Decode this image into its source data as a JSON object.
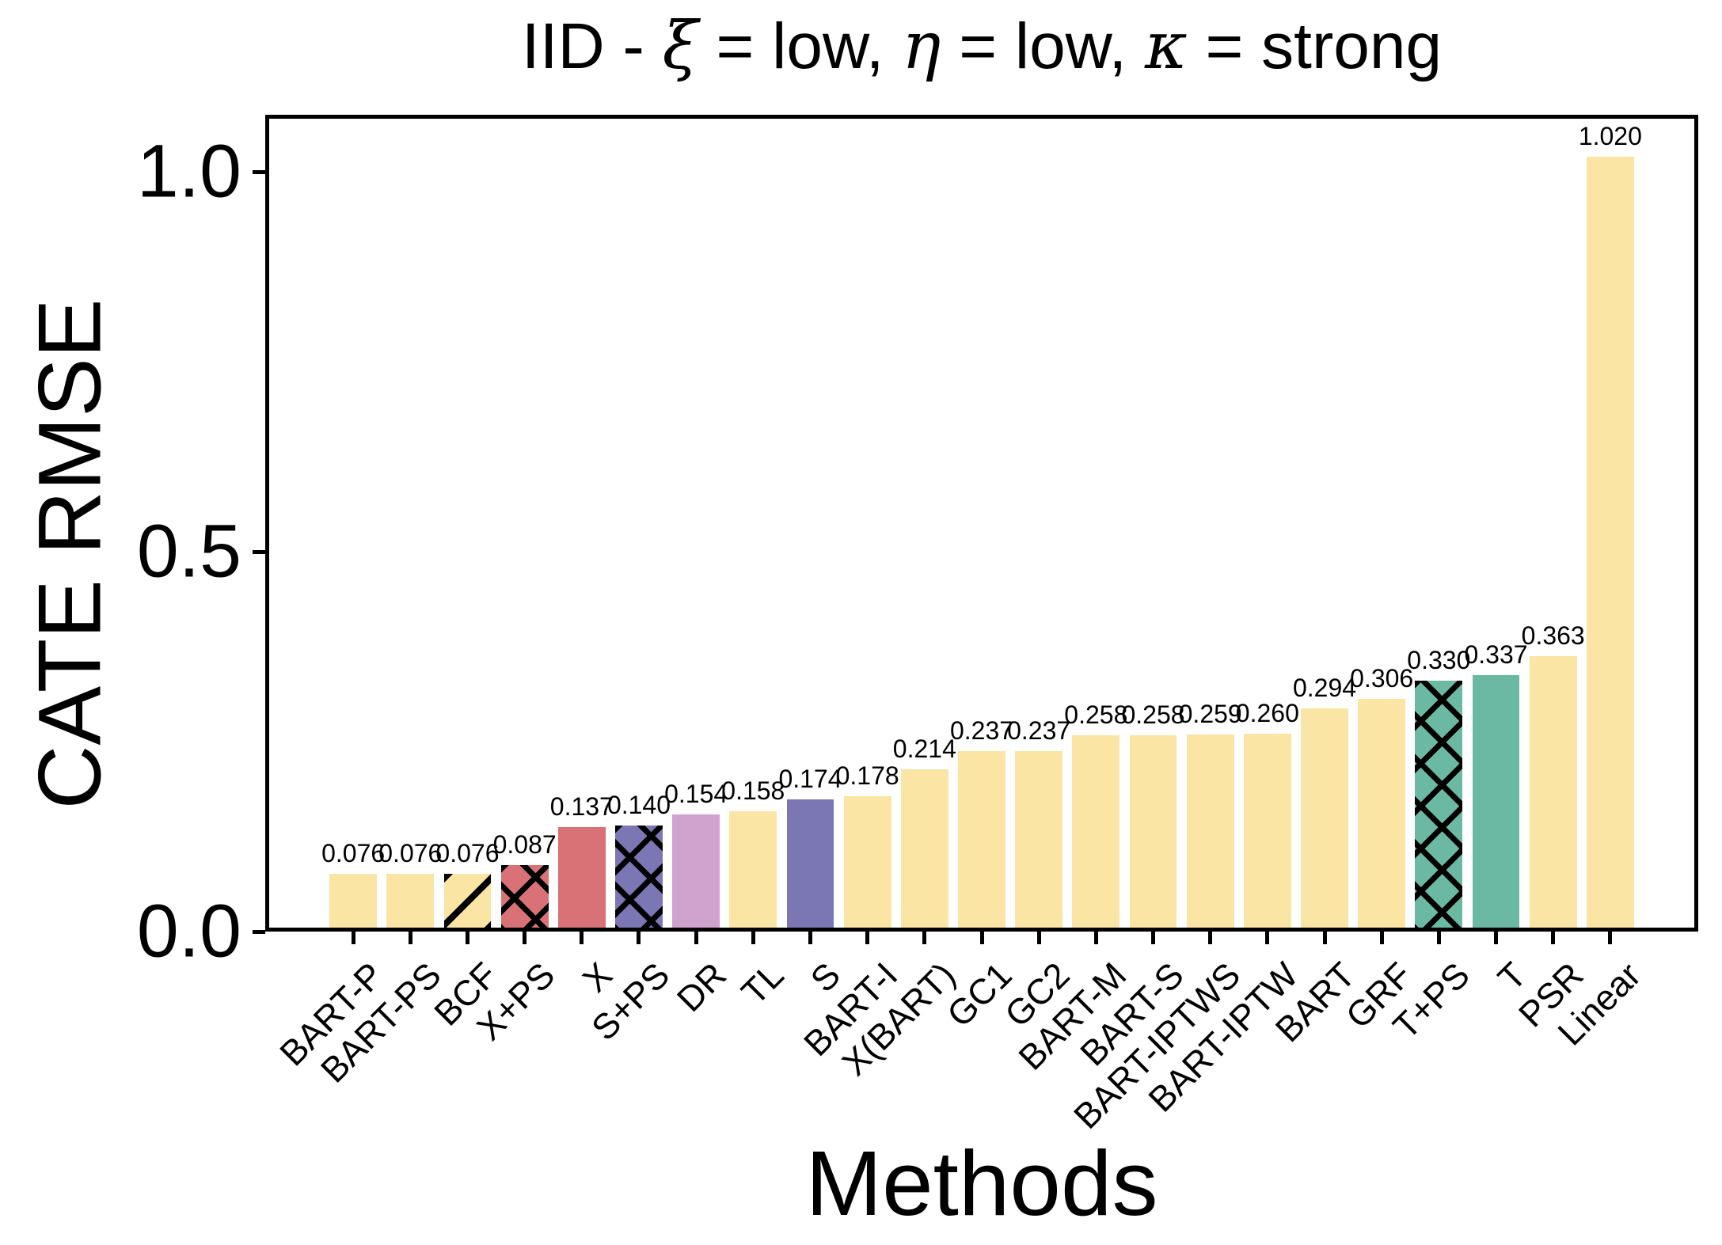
{
  "title": {
    "plain": "IID - ξ = low, η = low, κ = strong",
    "segments": [
      {
        "text": "IID - ",
        "italic": false
      },
      {
        "text": "ξ",
        "italic": true
      },
      {
        "text": " = low, ",
        "italic": false
      },
      {
        "text": "η",
        "italic": true
      },
      {
        "text": " = low, ",
        "italic": false
      },
      {
        "text": "κ",
        "italic": true
      },
      {
        "text": " = strong",
        "italic": false
      }
    ]
  },
  "chart_data": {
    "type": "bar",
    "title": "IID - ξ = low, η = low, κ = strong",
    "xlabel": "Methods",
    "ylabel": "CATE RMSE",
    "ylim": [
      0,
      1.075
    ],
    "yticks": [
      0.0,
      0.5,
      1.0
    ],
    "ytick_labels": [
      "0.0",
      "0.5",
      "1.0"
    ],
    "grid": false,
    "legend": null,
    "categories": [
      "BART-P",
      "BART-PS",
      "BCF",
      "X+PS",
      "X",
      "S+PS",
      "DR",
      "TL",
      "S",
      "BART-I",
      "X(BART)",
      "GC1",
      "GC2",
      "BART-M",
      "BART-S",
      "BART-IPTWS",
      "BART-IPTW",
      "BART",
      "GRF",
      "T+PS",
      "T",
      "PSR",
      "Linear"
    ],
    "values": [
      0.076,
      0.076,
      0.076,
      0.087,
      0.137,
      0.14,
      0.154,
      0.158,
      0.174,
      0.178,
      0.214,
      0.237,
      0.237,
      0.258,
      0.258,
      0.259,
      0.26,
      0.294,
      0.306,
      0.33,
      0.337,
      0.363,
      1.02
    ],
    "value_labels": [
      "0.076",
      "0.076",
      "0.076",
      "0.087",
      "0.137",
      "0.140",
      "0.154",
      "0.158",
      "0.174",
      "0.178",
      "0.214",
      "0.237",
      "0.237",
      "0.258",
      "0.258",
      "0.259",
      "0.260",
      "0.294",
      "0.306",
      "0.330",
      "0.337",
      "0.363",
      "1.020"
    ],
    "bar_colors": [
      "yellow",
      "yellow",
      "yellow",
      "red",
      "red",
      "purple",
      "lavender",
      "yellow",
      "purple",
      "yellow",
      "yellow",
      "yellow",
      "yellow",
      "yellow",
      "yellow",
      "yellow",
      "yellow",
      "yellow",
      "yellow",
      "green",
      "green",
      "yellow",
      "yellow"
    ],
    "bar_hatches": [
      "",
      "",
      "/",
      "x",
      "",
      "x",
      "",
      "",
      "",
      "",
      "",
      "",
      "",
      "",
      "",
      "",
      "",
      "",
      "",
      "x",
      "",
      "",
      ""
    ]
  },
  "palette": {
    "yellow": "#FAE5A4",
    "red": "#D97277",
    "purple": "#7B76B4",
    "lavender": "#D0A3CF",
    "green": "#6CB9A3",
    "axis": "#000000",
    "background": "#FFFFFF"
  }
}
